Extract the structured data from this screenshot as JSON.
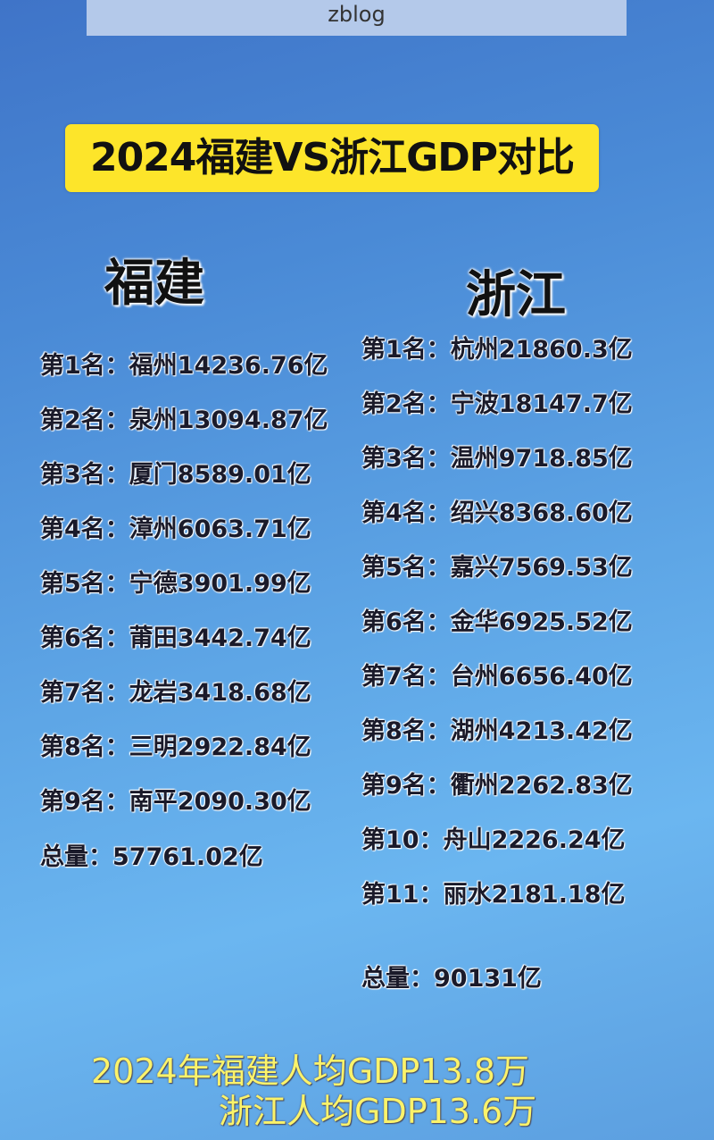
{
  "watermark": "zblog",
  "title": "2024福建VS浙江GDP对比",
  "fujian": {
    "name": "福建",
    "items": [
      "第1名：福州14236.76亿",
      "第2名：泉州13094.87亿",
      "第3名：厦门8589.01亿",
      "第4名：漳州6063.71亿",
      "第5名：宁德3901.99亿",
      "第6名：莆田3442.74亿",
      "第7名：龙岩3418.68亿",
      "第8名：三明2922.84亿",
      "第9名：南平2090.30亿"
    ],
    "total": "总量：57761.02亿"
  },
  "zhejiang": {
    "name": "浙江",
    "items": [
      "第1名：杭州21860.3亿",
      "第2名：宁波18147.7亿",
      "第3名：温州9718.85亿",
      "第4名：绍兴8368.60亿",
      "第5名：嘉兴7569.53亿",
      "第6名：金华6925.52亿",
      "第7名：台州6656.40亿",
      "第8名：湖州4213.42亿",
      "第9名：衢州2262.83亿",
      "第10：舟山2226.24亿",
      "第11：丽水2181.18亿"
    ],
    "total": "总量：90131亿"
  },
  "footer": {
    "line1": "2024年福建人均GDP13.8万",
    "line2": "浙江人均GDP13.6万"
  }
}
